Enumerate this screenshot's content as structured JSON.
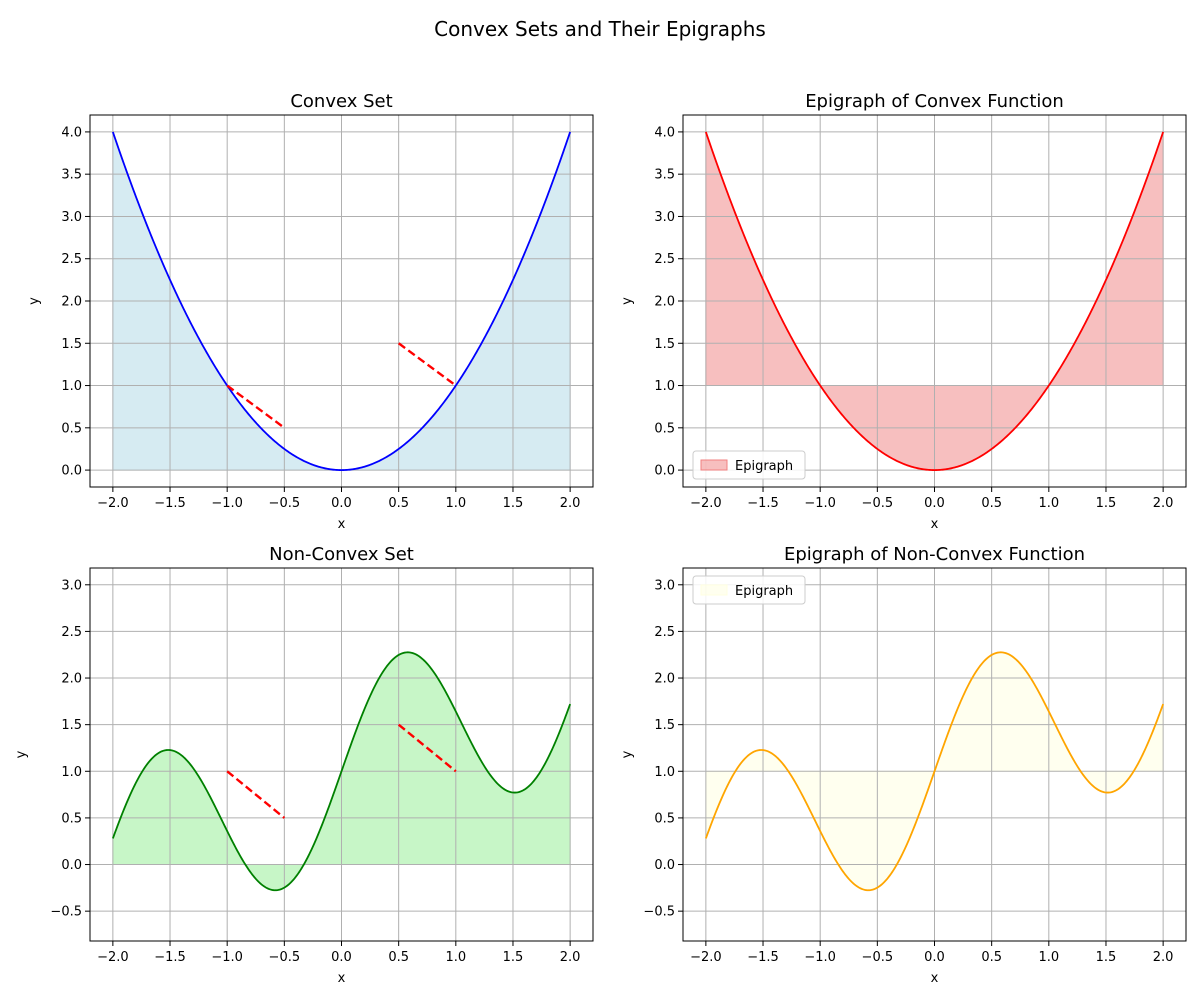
{
  "figure": {
    "title": "Convex Sets and Their Epigraphs"
  },
  "chart_data": [
    {
      "type": "line",
      "title": "Convex Set",
      "xlabel": "x",
      "ylabel": "y",
      "xlim": [
        -2.2,
        2.2
      ],
      "ylim": [
        -0.2,
        4.2
      ],
      "xticks": [
        -2.0,
        -1.5,
        -1.0,
        -0.5,
        0.0,
        0.5,
        1.0,
        1.5,
        2.0
      ],
      "yticks": [
        0.0,
        0.5,
        1.0,
        1.5,
        2.0,
        2.5,
        3.0,
        3.5,
        4.0
      ],
      "grid": true,
      "function": "x^2",
      "x_range": [
        -2,
        2
      ],
      "line_color": "#0000ff",
      "fill": {
        "baseline": 0,
        "color": "#add8e6",
        "opacity": 0.5
      },
      "segments": [
        {
          "x": [
            -1.0,
            -0.5
          ],
          "y": [
            1.0,
            0.5
          ],
          "color": "#ff0000",
          "style": "dashed"
        },
        {
          "x": [
            0.5,
            1.0
          ],
          "y": [
            1.5,
            1.0
          ],
          "color": "#ff0000",
          "style": "dashed"
        }
      ]
    },
    {
      "type": "area",
      "title": "Epigraph of Convex Function",
      "xlabel": "x",
      "ylabel": "y",
      "xlim": [
        -2.2,
        2.2
      ],
      "ylim": [
        -0.2,
        4.2
      ],
      "xticks": [
        -2.0,
        -1.5,
        -1.0,
        -0.5,
        0.0,
        0.5,
        1.0,
        1.5,
        2.0
      ],
      "yticks": [
        0.0,
        0.5,
        1.0,
        1.5,
        2.0,
        2.5,
        3.0,
        3.5,
        4.0
      ],
      "grid": true,
      "function": "x^2",
      "x_range": [
        -2,
        2
      ],
      "line_color": "#ff0000",
      "fill": {
        "baseline": 1,
        "color": "#f08080",
        "opacity": 0.5
      },
      "legend": {
        "entries": [
          "Epigraph"
        ],
        "placement": "lower-left"
      },
      "segments": []
    },
    {
      "type": "line",
      "title": "Non-Convex Set",
      "xlabel": "x",
      "ylabel": "y",
      "xlim": [
        -2.2,
        2.2
      ],
      "ylim": [
        -0.82,
        3.18
      ],
      "xticks": [
        -2.0,
        -1.5,
        -1.0,
        -0.5,
        0.0,
        0.5,
        1.0,
        1.5,
        2.0
      ],
      "yticks": [
        -0.5,
        0.0,
        0.5,
        1.0,
        1.5,
        2.0,
        2.5,
        3.0
      ],
      "grid": true,
      "function": "sin(3x) + x/2 + 1",
      "x_range": [
        -2,
        2
      ],
      "line_color": "#008000",
      "fill": {
        "baseline": 0,
        "color": "#90ee90",
        "opacity": 0.5
      },
      "segments": [
        {
          "x": [
            -1.0,
            -0.5
          ],
          "y": [
            1.0,
            0.5
          ],
          "color": "#ff0000",
          "style": "dashed"
        },
        {
          "x": [
            0.5,
            1.0
          ],
          "y": [
            1.5,
            1.0
          ],
          "color": "#ff0000",
          "style": "dashed"
        }
      ]
    },
    {
      "type": "area",
      "title": "Epigraph of Non-Convex Function",
      "xlabel": "x",
      "ylabel": "y",
      "xlim": [
        -2.2,
        2.2
      ],
      "ylim": [
        -0.82,
        3.18
      ],
      "xticks": [
        -2.0,
        -1.5,
        -1.0,
        -0.5,
        0.0,
        0.5,
        1.0,
        1.5,
        2.0
      ],
      "yticks": [
        -0.5,
        0.0,
        0.5,
        1.0,
        1.5,
        2.0,
        2.5,
        3.0
      ],
      "grid": true,
      "function": "sin(3x) + x/2 + 1",
      "x_range": [
        -2,
        2
      ],
      "line_color": "#ffa500",
      "fill": {
        "baseline": 1,
        "color": "#ffffe0",
        "opacity": 0.5
      },
      "legend": {
        "entries": [
          "Epigraph"
        ],
        "placement": "upper-left"
      },
      "segments": []
    }
  ]
}
